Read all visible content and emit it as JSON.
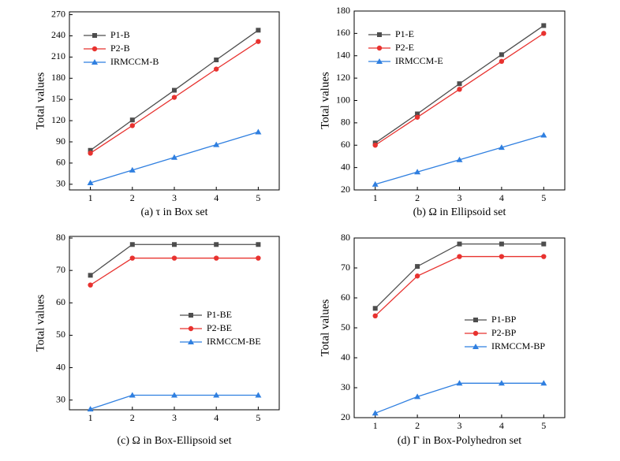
{
  "chart_data": [
    {
      "type": "line",
      "title": "(a) τ in Box set",
      "y_label": "Total values",
      "legend": "upper left",
      "x": [
        1,
        2,
        3,
        4,
        5
      ],
      "xlim": [
        0.5,
        5.5
      ],
      "xticks": [
        1,
        2,
        3,
        4,
        5
      ],
      "ylim": [
        22,
        274
      ],
      "yticks": [
        30,
        60,
        90,
        120,
        150,
        180,
        210,
        240,
        270
      ],
      "series": [
        {
          "name": "P1-B",
          "color": "#4d4d4d",
          "marker": "square",
          "values": [
            78,
            121,
            163,
            206,
            248
          ]
        },
        {
          "name": "P2-B",
          "color": "#e8322f",
          "marker": "circle",
          "values": [
            74,
            113,
            153,
            193,
            232
          ]
        },
        {
          "name": "IRMCCM-B",
          "color": "#2f7fe0",
          "marker": "triangle",
          "values": [
            32,
            50,
            68,
            86,
            104
          ]
        }
      ]
    },
    {
      "type": "line",
      "title": "(b) Ω in Ellipsoid set",
      "y_label": "Total values",
      "legend": "upper left",
      "x": [
        1,
        2,
        3,
        4,
        5
      ],
      "xlim": [
        0.5,
        5.5
      ],
      "xticks": [
        1,
        2,
        3,
        4,
        5
      ],
      "ylim": [
        20,
        180
      ],
      "yticks": [
        20,
        40,
        60,
        80,
        100,
        120,
        140,
        160,
        180
      ],
      "series": [
        {
          "name": "P1-E",
          "color": "#4d4d4d",
          "marker": "square",
          "values": [
            62,
            88,
            115,
            141,
            167
          ]
        },
        {
          "name": "P2-E",
          "color": "#e8322f",
          "marker": "circle",
          "values": [
            60,
            85,
            110,
            135,
            160
          ]
        },
        {
          "name": "IRMCCM-E",
          "color": "#2f7fe0",
          "marker": "triangle",
          "values": [
            25,
            36,
            47,
            58,
            69
          ]
        }
      ]
    },
    {
      "type": "line",
      "title": "(c) Ω in Box-Ellipsoid set",
      "y_label": "Total values",
      "legend": "center right",
      "x": [
        1,
        2,
        3,
        4,
        5
      ],
      "xlim": [
        0.5,
        5.5
      ],
      "xticks": [
        1,
        2,
        3,
        4,
        5
      ],
      "ylim": [
        27,
        80.5
      ],
      "yticks": [
        30,
        40,
        50,
        60,
        70,
        80
      ],
      "series": [
        {
          "name": "P1-BE",
          "color": "#4d4d4d",
          "marker": "square",
          "values": [
            68.5,
            78,
            78,
            78,
            78
          ]
        },
        {
          "name": "P2-BE",
          "color": "#e8322f",
          "marker": "circle",
          "values": [
            65.5,
            73.8,
            73.8,
            73.8,
            73.8
          ]
        },
        {
          "name": "IRMCCM-BE",
          "color": "#2f7fe0",
          "marker": "triangle",
          "values": [
            27.2,
            31.5,
            31.5,
            31.5,
            31.5
          ]
        }
      ]
    },
    {
      "type": "line",
      "title": "(d) Γ in Box-Polyhedron set",
      "y_label": "Total values",
      "legend": "center right",
      "x": [
        1,
        2,
        3,
        4,
        5
      ],
      "xlim": [
        0.5,
        5.5
      ],
      "xticks": [
        1,
        2,
        3,
        4,
        5
      ],
      "ylim": [
        20,
        80
      ],
      "yticks": [
        20,
        30,
        40,
        50,
        60,
        70,
        80
      ],
      "series": [
        {
          "name": "P1-BP",
          "color": "#4d4d4d",
          "marker": "square",
          "values": [
            56.5,
            70.5,
            78,
            78,
            78
          ]
        },
        {
          "name": "P2-BP",
          "color": "#e8322f",
          "marker": "circle",
          "values": [
            54,
            67.3,
            73.8,
            73.8,
            73.8
          ]
        },
        {
          "name": "IRMCCM-BP",
          "color": "#2f7fe0",
          "marker": "triangle",
          "values": [
            21.5,
            27,
            31.5,
            31.5,
            31.5
          ]
        }
      ]
    }
  ]
}
